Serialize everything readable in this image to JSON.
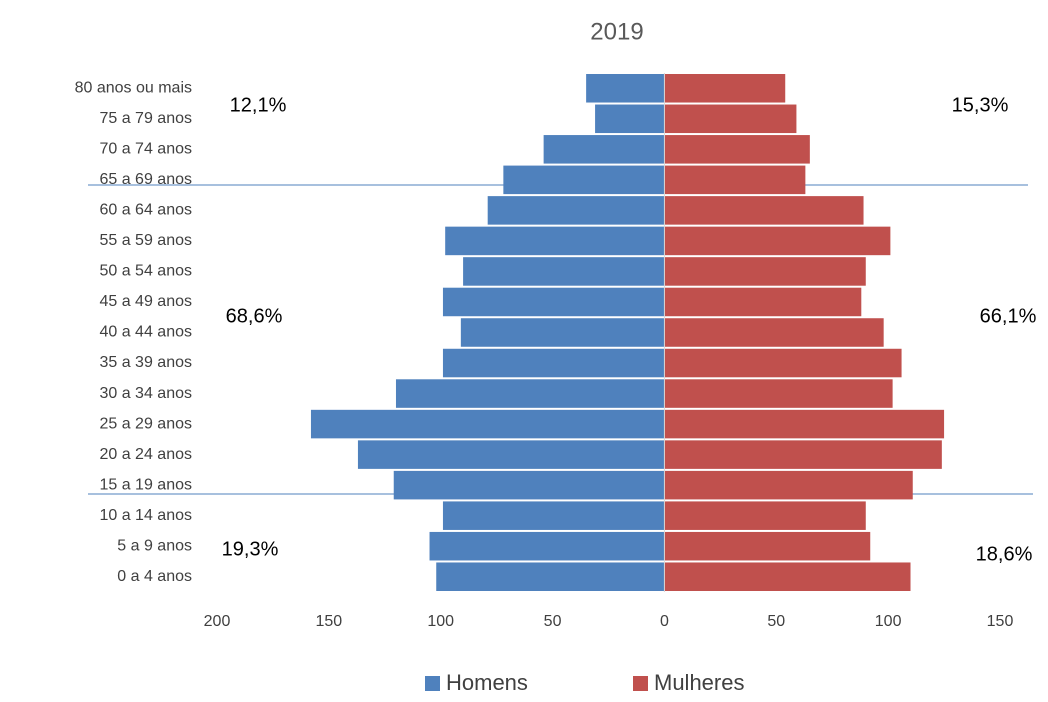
{
  "chart_data": {
    "type": "pyramid",
    "title": "2019",
    "categories": [
      "0 a 4 anos",
      "5 a 9 anos",
      "10 a 14 anos",
      "15 a 19 anos",
      "20 a 24 anos",
      "25 a 29 anos",
      "30 a 34 anos",
      "35 a 39 anos",
      "40 a 44 anos",
      "45 a 49 anos",
      "50 a 54 anos",
      "55 a 59 anos",
      "60 a 64 anos",
      "65 a 69 anos",
      "70 a 74 anos",
      "75 a 79 anos",
      "80 anos ou mais"
    ],
    "series": [
      {
        "name": "Homens",
        "color": "#4f81bd",
        "values": [
          -102,
          -105,
          -99,
          -121,
          -137,
          -158,
          -120,
          -99,
          -91,
          -99,
          -90,
          -98,
          -79,
          -72,
          -54,
          -31,
          -35
        ]
      },
      {
        "name": "Mulheres",
        "color": "#c0504d",
        "values": [
          110,
          92,
          90,
          111,
          124,
          125,
          102,
          106,
          98,
          88,
          90,
          101,
          89,
          63,
          65,
          59,
          54
        ]
      }
    ],
    "xlim": [
      -200,
      150
    ],
    "xticks": [
      {
        "value": -200,
        "label": "200"
      },
      {
        "value": -150,
        "label": "150"
      },
      {
        "value": -100,
        "label": "100"
      },
      {
        "value": -50,
        "label": "50"
      },
      0,
      50,
      100,
      150
    ],
    "annotations": [
      "12,1%",
      "15,3%",
      "68,6%",
      "66,1%",
      "19,3%",
      "18,6%"
    ],
    "legend": "bottom"
  }
}
